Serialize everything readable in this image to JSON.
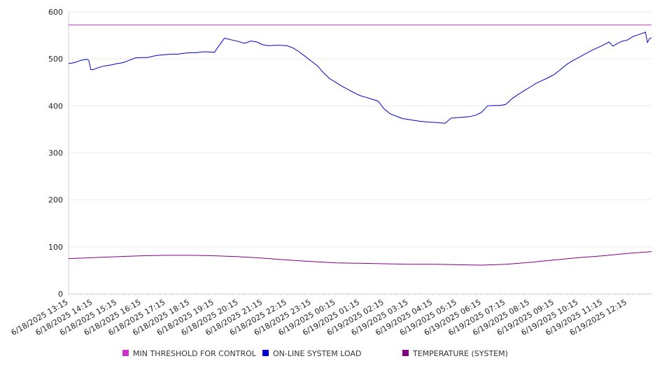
{
  "chart_data": {
    "type": "line",
    "title": "",
    "xlabel": "",
    "ylabel": "",
    "ylim": [
      0,
      600
    ],
    "y_ticks": [
      0,
      100,
      200,
      300,
      400,
      500,
      600
    ],
    "grid": "horizontal",
    "legend_position": "bottom",
    "x_tick_labels": [
      "6/18/2025 13:15",
      "6/18/2025 14:15",
      "6/18/2025 15:15",
      "6/18/2025 16:15",
      "6/18/2025 17:15",
      "6/18/2025 18:15",
      "6/18/2025 19:15",
      "6/18/2025 20:15",
      "6/18/2025 21:15",
      "6/18/2025 22:15",
      "6/18/2025 23:15",
      "6/19/2025 00:15",
      "6/19/2025 01:15",
      "6/19/2025 02:15",
      "6/19/2025 03:15",
      "6/19/2025 04:15",
      "6/19/2025 05:15",
      "6/19/2025 06:15",
      "6/19/2025 07:15",
      "6/19/2025 08:15",
      "6/19/2025 09:15",
      "6/19/2025 10:15",
      "6/19/2025 11:15",
      "6/19/2025 12:15"
    ],
    "x_start": "6/18/2025 13:15",
    "x_end": "6/19/2025 13:15",
    "series": [
      {
        "name": "MIN THRESHOLD FOR CONTROL",
        "color": "#cc33cc",
        "points": [
          [
            "6/18/2025 13:15",
            572
          ],
          [
            "6/19/2025 13:15",
            572
          ]
        ]
      },
      {
        "name": "ON-LINE SYSTEM LOAD",
        "color": "#0000cc",
        "points": [
          [
            "6/18/2025 13:15",
            490
          ],
          [
            "6/18/2025 13:30",
            492
          ],
          [
            "6/18/2025 13:45",
            497
          ],
          [
            "6/18/2025 14:00",
            499
          ],
          [
            "6/18/2025 14:05",
            497
          ],
          [
            "6/18/2025 14:10",
            477
          ],
          [
            "6/18/2025 14:15",
            477
          ],
          [
            "6/18/2025 14:30",
            482
          ],
          [
            "6/18/2025 14:45",
            485
          ],
          [
            "6/18/2025 15:00",
            487
          ],
          [
            "6/18/2025 15:15",
            490
          ],
          [
            "6/18/2025 15:30",
            492
          ],
          [
            "6/18/2025 15:45",
            497
          ],
          [
            "6/18/2025 16:00",
            502
          ],
          [
            "6/18/2025 16:15",
            503
          ],
          [
            "6/18/2025 16:30",
            503
          ],
          [
            "6/18/2025 16:45",
            506
          ],
          [
            "6/18/2025 17:00",
            508
          ],
          [
            "6/18/2025 17:15",
            509
          ],
          [
            "6/18/2025 17:30",
            510
          ],
          [
            "6/18/2025 17:45",
            510
          ],
          [
            "6/18/2025 18:00",
            512
          ],
          [
            "6/18/2025 18:15",
            513
          ],
          [
            "6/18/2025 18:30",
            513
          ],
          [
            "6/18/2025 18:45",
            515
          ],
          [
            "6/18/2025 19:00",
            515
          ],
          [
            "6/18/2025 19:15",
            514
          ],
          [
            "6/18/2025 19:30",
            532
          ],
          [
            "6/18/2025 19:40",
            544
          ],
          [
            "6/18/2025 20:00",
            540
          ],
          [
            "6/18/2025 20:15",
            537
          ],
          [
            "6/18/2025 20:30",
            533
          ],
          [
            "6/18/2025 20:45",
            538
          ],
          [
            "6/18/2025 21:00",
            536
          ],
          [
            "6/18/2025 21:15",
            530
          ],
          [
            "6/18/2025 21:30",
            528
          ],
          [
            "6/18/2025 21:45",
            529
          ],
          [
            "6/18/2025 22:00",
            529
          ],
          [
            "6/18/2025 22:15",
            528
          ],
          [
            "6/18/2025 22:30",
            523
          ],
          [
            "6/18/2025 22:45",
            515
          ],
          [
            "6/18/2025 23:00",
            505
          ],
          [
            "6/18/2025 23:15",
            495
          ],
          [
            "6/18/2025 23:30",
            485
          ],
          [
            "6/18/2025 23:45",
            470
          ],
          [
            "6/19/2025 00:00",
            458
          ],
          [
            "6/19/2025 00:15",
            450
          ],
          [
            "6/19/2025 00:30",
            442
          ],
          [
            "6/19/2025 00:45",
            435
          ],
          [
            "6/19/2025 01:00",
            428
          ],
          [
            "6/19/2025 01:15",
            422
          ],
          [
            "6/19/2025 01:30",
            418
          ],
          [
            "6/19/2025 01:45",
            414
          ],
          [
            "6/19/2025 02:00",
            410
          ],
          [
            "6/19/2025 02:15",
            393
          ],
          [
            "6/19/2025 02:30",
            383
          ],
          [
            "6/19/2025 02:45",
            378
          ],
          [
            "6/19/2025 03:00",
            373
          ],
          [
            "6/19/2025 03:15",
            371
          ],
          [
            "6/19/2025 03:30",
            369
          ],
          [
            "6/19/2025 03:45",
            367
          ],
          [
            "6/19/2025 04:00",
            366
          ],
          [
            "6/19/2025 04:15",
            365
          ],
          [
            "6/19/2025 04:30",
            364
          ],
          [
            "6/19/2025 04:45",
            363
          ],
          [
            "6/19/2025 05:00",
            374
          ],
          [
            "6/19/2025 05:15",
            375
          ],
          [
            "6/19/2025 05:30",
            376
          ],
          [
            "6/19/2025 05:45",
            377
          ],
          [
            "6/19/2025 06:00",
            380
          ],
          [
            "6/19/2025 06:15",
            386
          ],
          [
            "6/19/2025 06:30",
            400
          ],
          [
            "6/19/2025 06:45",
            401
          ],
          [
            "6/19/2025 07:00",
            401
          ],
          [
            "6/19/2025 07:15",
            403
          ],
          [
            "6/19/2025 07:30",
            415
          ],
          [
            "6/19/2025 07:45",
            424
          ],
          [
            "6/19/2025 08:00",
            432
          ],
          [
            "6/19/2025 08:15",
            440
          ],
          [
            "6/19/2025 08:30",
            448
          ],
          [
            "6/19/2025 08:45",
            454
          ],
          [
            "6/19/2025 09:00",
            460
          ],
          [
            "6/19/2025 09:15",
            467
          ],
          [
            "6/19/2025 09:30",
            477
          ],
          [
            "6/19/2025 09:45",
            488
          ],
          [
            "6/19/2025 10:00",
            496
          ],
          [
            "6/19/2025 10:15",
            503
          ],
          [
            "6/19/2025 10:30",
            510
          ],
          [
            "6/19/2025 10:45",
            517
          ],
          [
            "6/19/2025 11:00",
            523
          ],
          [
            "6/19/2025 11:15",
            529
          ],
          [
            "6/19/2025 11:30",
            536
          ],
          [
            "6/19/2025 11:40",
            527
          ],
          [
            "6/19/2025 11:45",
            530
          ],
          [
            "6/19/2025 12:00",
            537
          ],
          [
            "6/19/2025 12:15",
            540
          ],
          [
            "6/19/2025 12:30",
            548
          ],
          [
            "6/19/2025 12:45",
            552
          ],
          [
            "6/19/2025 12:55",
            555
          ],
          [
            "6/19/2025 13:00",
            557
          ],
          [
            "6/19/2025 13:05",
            535
          ],
          [
            "6/19/2025 13:10",
            543
          ],
          [
            "6/19/2025 13:15",
            545
          ]
        ]
      },
      {
        "name": "TEMPERATURE (SYSTEM)",
        "color": "#800080",
        "points": [
          [
            "6/18/2025 13:15",
            75
          ],
          [
            "6/18/2025 14:15",
            77
          ],
          [
            "6/18/2025 15:15",
            79
          ],
          [
            "6/18/2025 16:15",
            81
          ],
          [
            "6/18/2025 17:15",
            82
          ],
          [
            "6/18/2025 18:15",
            82
          ],
          [
            "6/18/2025 19:15",
            81
          ],
          [
            "6/18/2025 20:15",
            79
          ],
          [
            "6/18/2025 21:15",
            76
          ],
          [
            "6/18/2025 22:15",
            72
          ],
          [
            "6/18/2025 23:15",
            69
          ],
          [
            "6/19/2025 00:15",
            66
          ],
          [
            "6/19/2025 01:15",
            65
          ],
          [
            "6/19/2025 02:15",
            64
          ],
          [
            "6/19/2025 03:15",
            63
          ],
          [
            "6/19/2025 04:15",
            63
          ],
          [
            "6/19/2025 05:15",
            62
          ],
          [
            "6/19/2025 06:15",
            61
          ],
          [
            "6/19/2025 07:15",
            63
          ],
          [
            "6/19/2025 08:15",
            67
          ],
          [
            "6/19/2025 09:15",
            72
          ],
          [
            "6/19/2025 10:15",
            77
          ],
          [
            "6/19/2025 11:15",
            81
          ],
          [
            "6/19/2025 12:15",
            86
          ],
          [
            "6/19/2025 13:15",
            90
          ]
        ]
      }
    ]
  }
}
